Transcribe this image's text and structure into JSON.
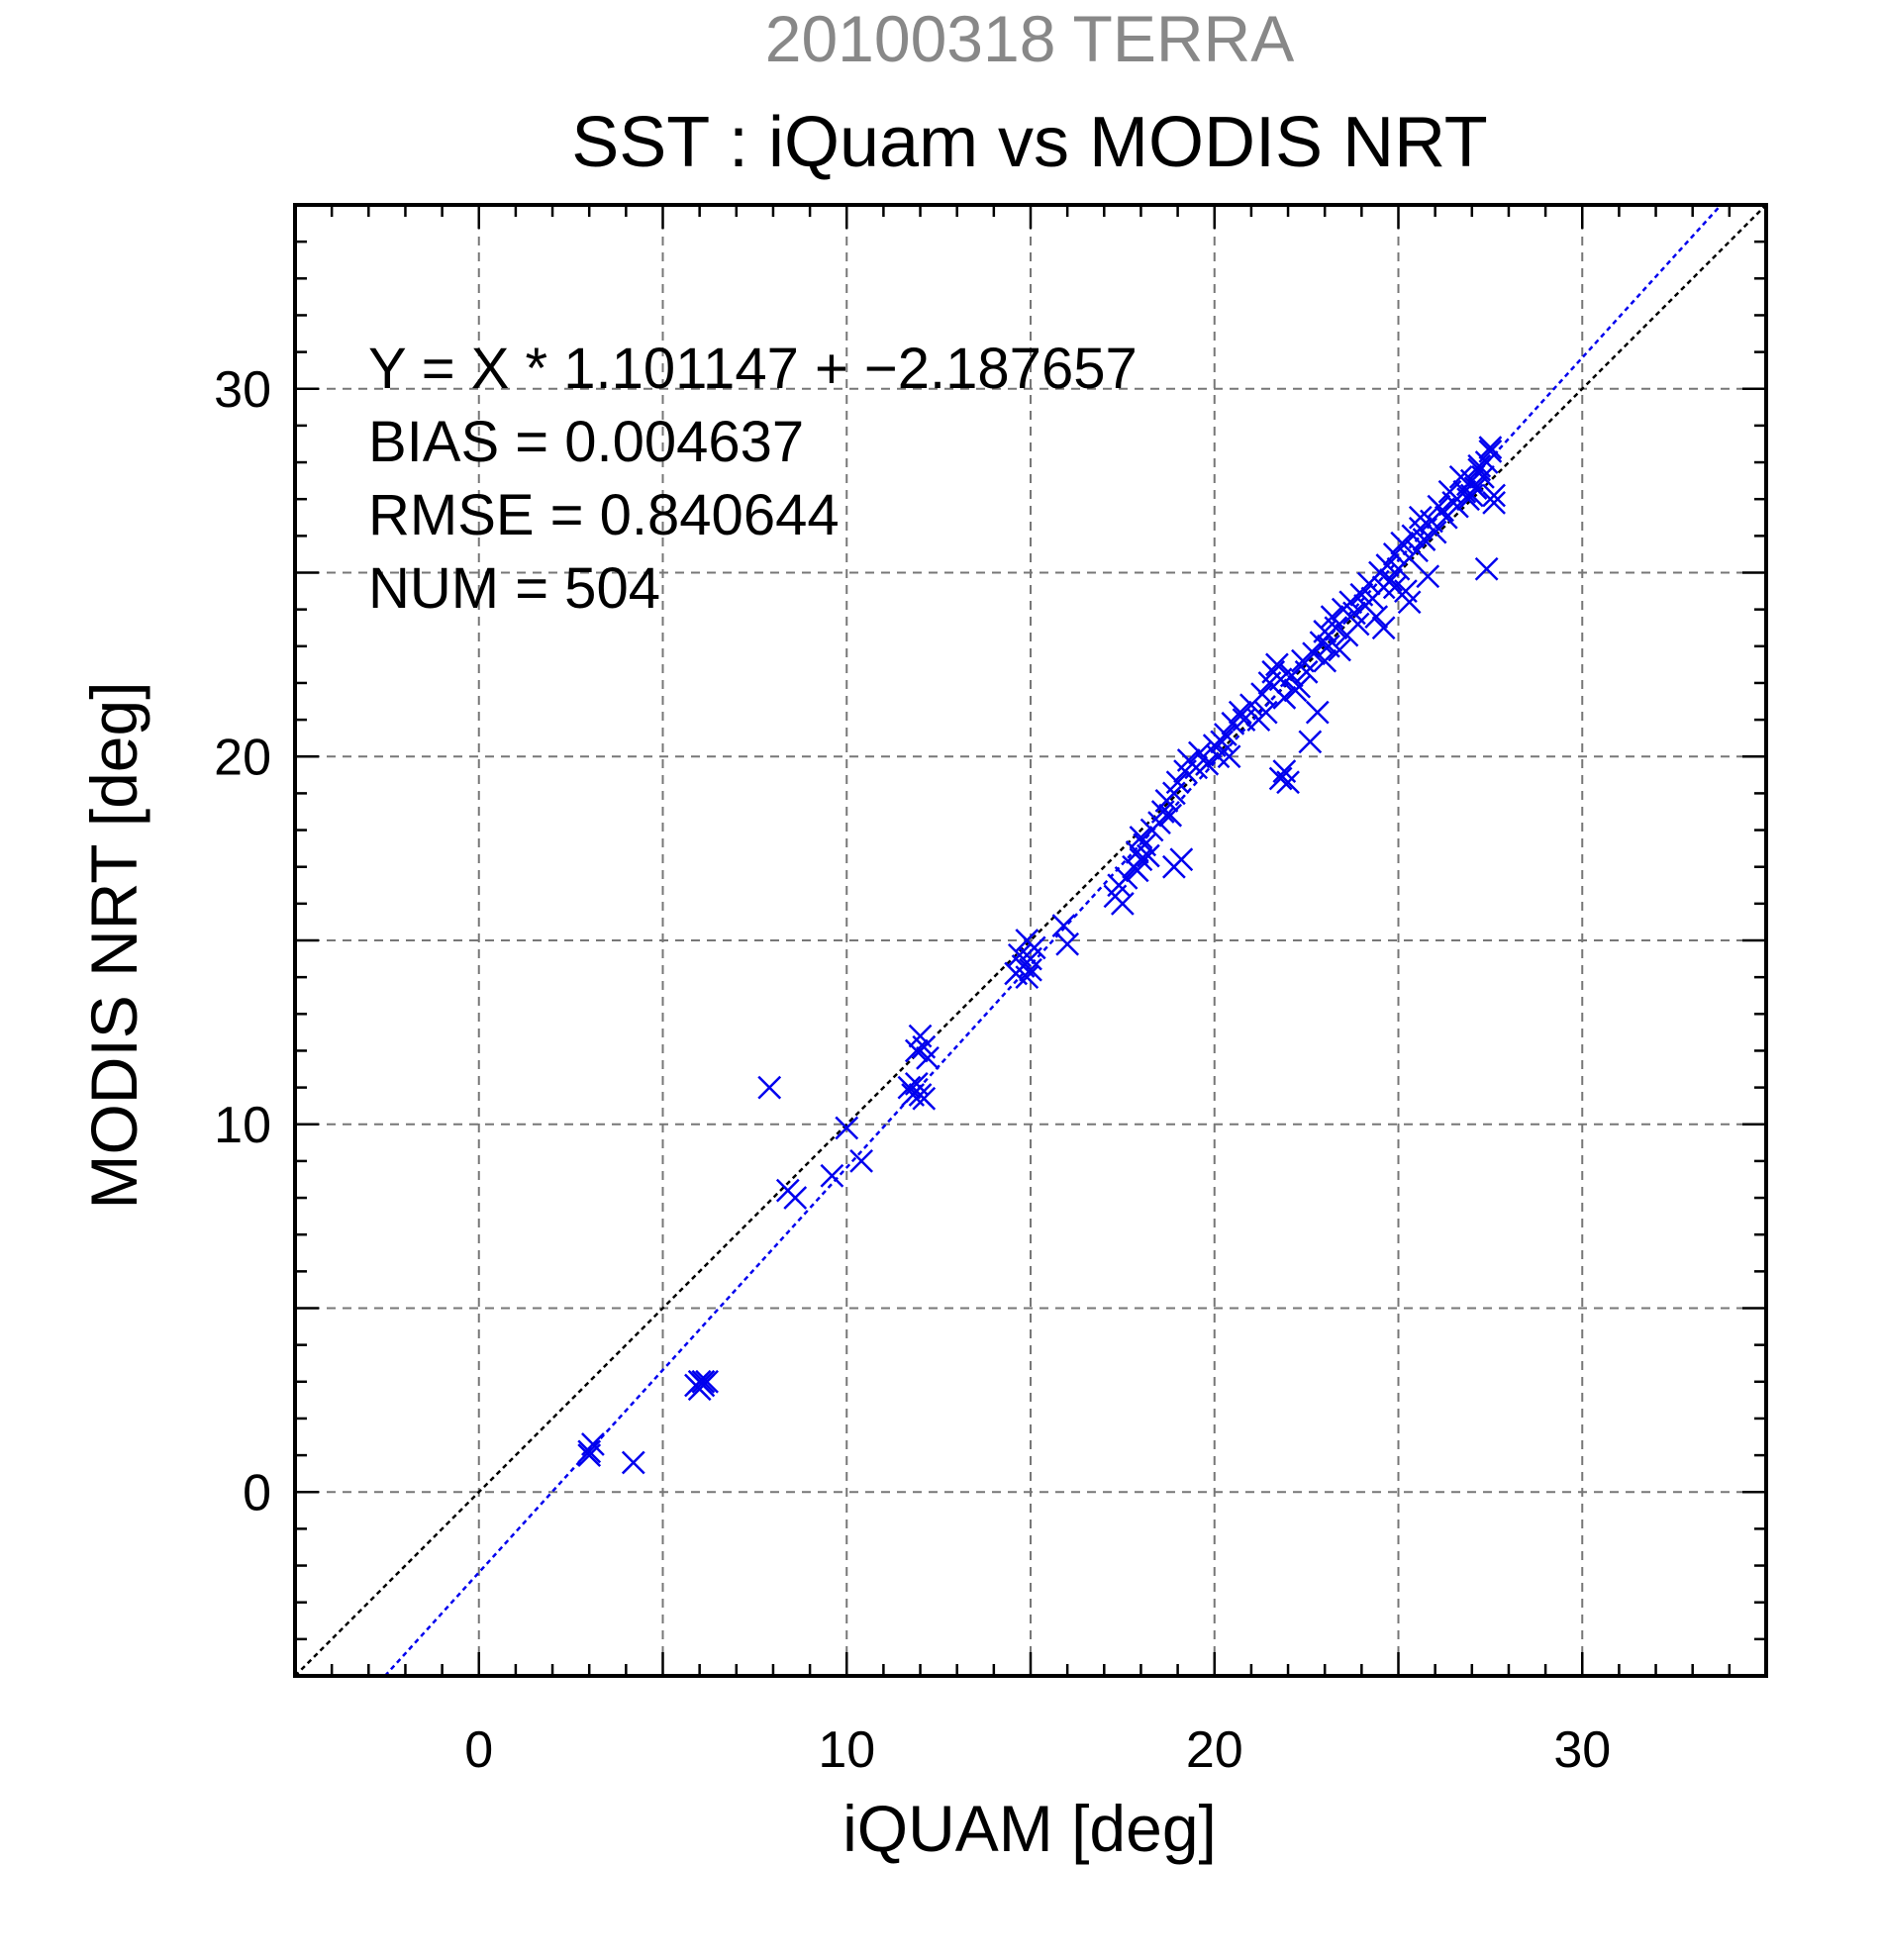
{
  "chart_data": {
    "type": "scatter",
    "title": "SST : iQuam vs MODIS NRT",
    "subtitle": "20100318 TERRA",
    "xlabel": "iQUAM [deg]",
    "ylabel": "MODIS NRT [deg]",
    "xlim": [
      -5,
      35
    ],
    "ylim": [
      -5,
      35
    ],
    "xticks": [
      0,
      10,
      20,
      30
    ],
    "yticks": [
      0,
      10,
      20,
      30
    ],
    "grid": true,
    "stats": [
      "Y = X * 1.101147 + −2.187657",
      "BIAS = 0.004637",
      "RMSE = 0.840644",
      "NUM = 504"
    ],
    "lines": [
      {
        "kind": "one-to-one",
        "slope": 1.0,
        "intercept": 0.0,
        "color": "#000000"
      },
      {
        "kind": "regression",
        "slope": 1.101147,
        "intercept": -2.187657,
        "color": "#0000ee"
      }
    ],
    "marker_color": "#0000ee",
    "points": [
      [
        3.0,
        1.1
      ],
      [
        3.1,
        1.3
      ],
      [
        3.0,
        1.0
      ],
      [
        4.2,
        0.8
      ],
      [
        5.9,
        2.9
      ],
      [
        6.0,
        3.0
      ],
      [
        6.1,
        2.9
      ],
      [
        6.2,
        3.0
      ],
      [
        6.0,
        2.8
      ],
      [
        6.1,
        3.0
      ],
      [
        7.9,
        11.0
      ],
      [
        8.4,
        8.2
      ],
      [
        8.6,
        8.0
      ],
      [
        9.6,
        8.6
      ],
      [
        10.0,
        9.9
      ],
      [
        10.4,
        9.0
      ],
      [
        11.7,
        11.0
      ],
      [
        11.8,
        10.8
      ],
      [
        11.9,
        11.1
      ],
      [
        12.0,
        10.8
      ],
      [
        12.1,
        10.7
      ],
      [
        12.0,
        12.4
      ],
      [
        12.1,
        12.1
      ],
      [
        12.2,
        11.8
      ],
      [
        11.9,
        12.0
      ],
      [
        14.6,
        14.1
      ],
      [
        14.8,
        14.3
      ],
      [
        14.9,
        14.0
      ],
      [
        15.0,
        14.5
      ],
      [
        14.9,
        15.0
      ],
      [
        15.1,
        14.8
      ],
      [
        15.0,
        14.2
      ],
      [
        14.7,
        14.6
      ],
      [
        15.9,
        15.4
      ],
      [
        16.0,
        14.9
      ],
      [
        17.3,
        16.2
      ],
      [
        17.4,
        16.5
      ],
      [
        17.5,
        16.0
      ],
      [
        17.6,
        16.7
      ],
      [
        17.8,
        17.0
      ],
      [
        17.9,
        17.4
      ],
      [
        18.0,
        17.2
      ],
      [
        18.1,
        17.6
      ],
      [
        18.0,
        17.8
      ],
      [
        18.2,
        17.3
      ],
      [
        17.9,
        16.9
      ],
      [
        18.5,
        18.2
      ],
      [
        18.6,
        18.5
      ],
      [
        18.7,
        18.8
      ],
      [
        18.9,
        19.0
      ],
      [
        19.0,
        19.3
      ],
      [
        18.8,
        18.4
      ],
      [
        19.2,
        19.6
      ],
      [
        19.3,
        19.9
      ],
      [
        19.1,
        17.2
      ],
      [
        18.9,
        17.0
      ],
      [
        19.6,
        20.1
      ],
      [
        19.8,
        19.8
      ],
      [
        20.0,
        20.3
      ],
      [
        20.1,
        20.0
      ],
      [
        20.3,
        20.6
      ],
      [
        20.5,
        20.9
      ],
      [
        20.2,
        20.4
      ],
      [
        20.7,
        21.2
      ],
      [
        20.4,
        20.0
      ],
      [
        21.0,
        21.4
      ],
      [
        21.2,
        21.0
      ],
      [
        21.3,
        21.7
      ],
      [
        21.5,
        22.0
      ],
      [
        21.4,
        21.2
      ],
      [
        21.6,
        22.3
      ],
      [
        21.8,
        22.1
      ],
      [
        21.7,
        22.5
      ],
      [
        21.9,
        21.6
      ],
      [
        21.8,
        19.4
      ],
      [
        22.0,
        19.3
      ],
      [
        21.9,
        19.6
      ],
      [
        22.1,
        22.2
      ],
      [
        22.3,
        21.9
      ],
      [
        22.4,
        22.6
      ],
      [
        22.5,
        22.3
      ],
      [
        22.6,
        20.4
      ],
      [
        22.7,
        22.8
      ],
      [
        22.8,
        21.2
      ],
      [
        22.9,
        23.1
      ],
      [
        23.0,
        23.4
      ],
      [
        23.1,
        23.0
      ],
      [
        23.2,
        23.8
      ],
      [
        23.3,
        23.5
      ],
      [
        23.5,
        24.0
      ],
      [
        23.6,
        23.3
      ],
      [
        23.7,
        24.2
      ],
      [
        23.8,
        23.9
      ],
      [
        24.0,
        24.4
      ],
      [
        24.1,
        24.1
      ],
      [
        23.9,
        23.6
      ],
      [
        24.2,
        24.7
      ],
      [
        24.3,
        24.3
      ],
      [
        24.5,
        25.0
      ],
      [
        24.6,
        24.6
      ],
      [
        24.7,
        25.2
      ],
      [
        24.8,
        24.8
      ],
      [
        24.9,
        25.5
      ],
      [
        25.0,
        25.1
      ],
      [
        24.4,
        23.8
      ],
      [
        25.2,
        24.5
      ],
      [
        25.1,
        25.8
      ],
      [
        25.3,
        25.4
      ],
      [
        25.4,
        26.0
      ],
      [
        25.5,
        25.6
      ],
      [
        25.6,
        26.2
      ],
      [
        25.7,
        25.9
      ],
      [
        25.9,
        26.4
      ],
      [
        26.0,
        26.1
      ],
      [
        25.8,
        24.9
      ],
      [
        26.2,
        26.7
      ],
      [
        26.3,
        26.5
      ],
      [
        26.5,
        26.9
      ],
      [
        26.6,
        26.8
      ],
      [
        26.8,
        27.2
      ],
      [
        26.9,
        27.0
      ],
      [
        27.0,
        27.5
      ],
      [
        27.1,
        27.3
      ],
      [
        27.2,
        27.8
      ],
      [
        27.3,
        27.6
      ],
      [
        27.0,
        27.1
      ],
      [
        27.4,
        28.0
      ],
      [
        27.5,
        28.3
      ],
      [
        27.6,
        27.1
      ],
      [
        27.6,
        26.9
      ],
      [
        27.4,
        25.1
      ],
      [
        27.5,
        28.4
      ],
      [
        26.4,
        27.2
      ],
      [
        26.1,
        26.8
      ],
      [
        25.6,
        26.5
      ],
      [
        24.9,
        24.6
      ],
      [
        23.4,
        22.9
      ],
      [
        22.2,
        21.8
      ],
      [
        24.6,
        23.5
      ],
      [
        25.3,
        24.2
      ],
      [
        26.7,
        27.6
      ],
      [
        27.2,
        27.9
      ],
      [
        23.0,
        22.6
      ],
      [
        20.8,
        21.0
      ],
      [
        19.5,
        19.7
      ],
      [
        18.3,
        18.0
      ]
    ]
  }
}
